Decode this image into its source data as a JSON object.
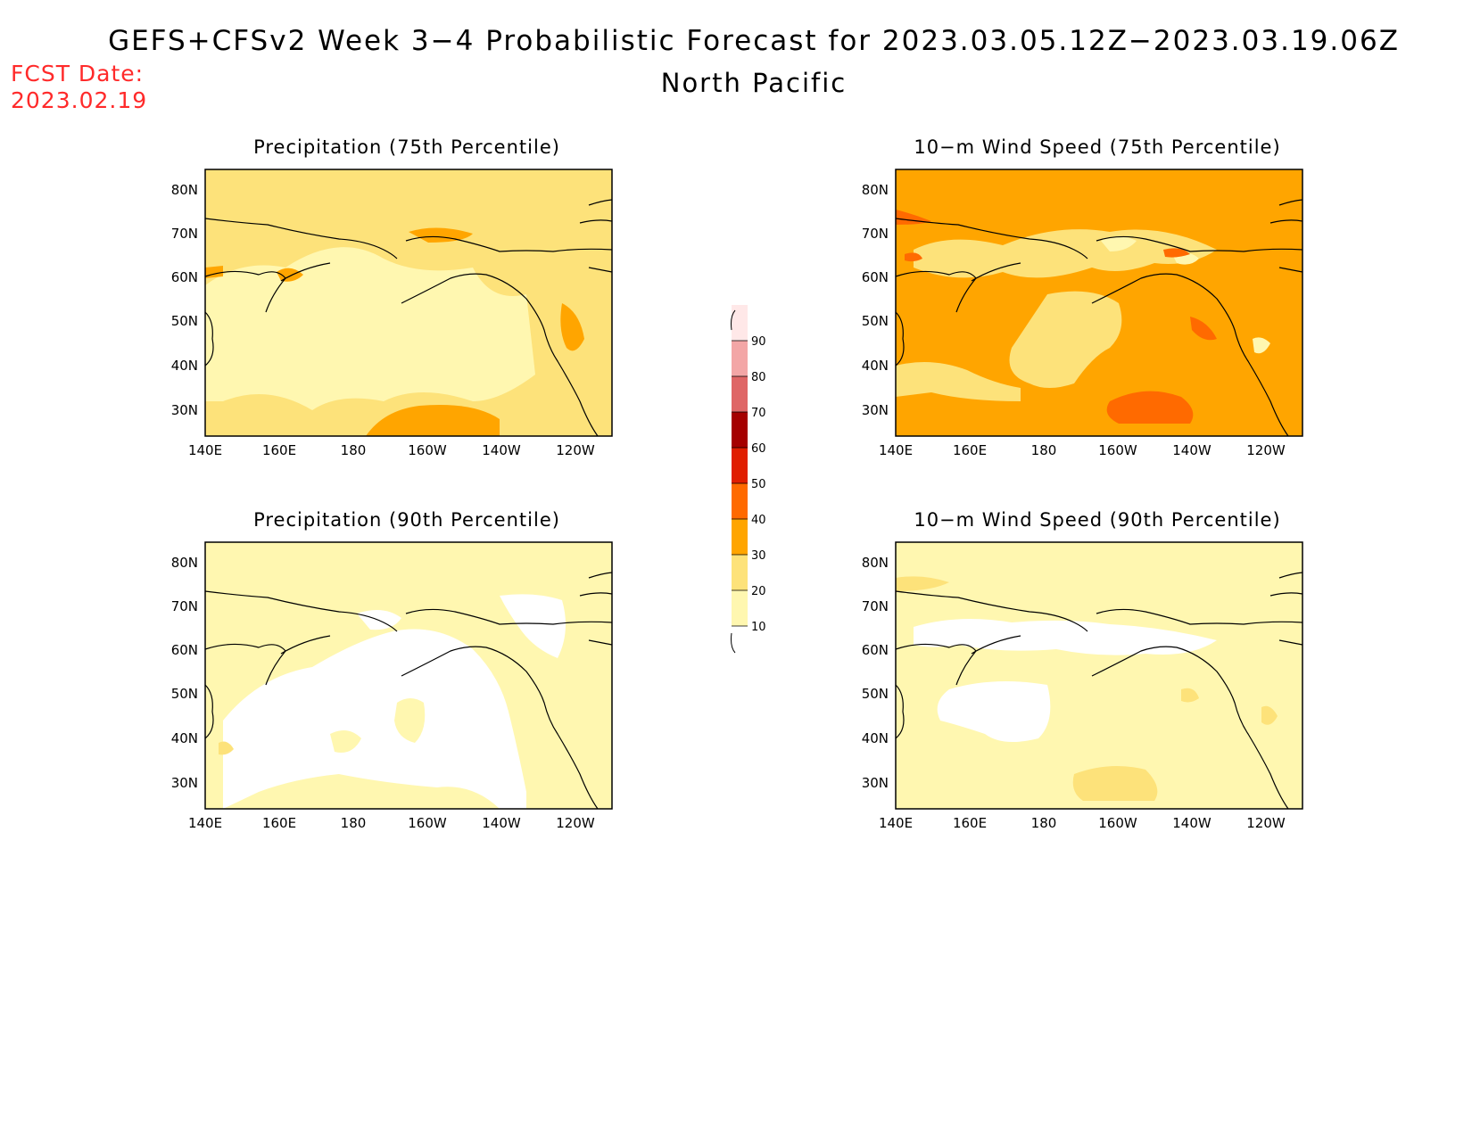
{
  "header": {
    "title": "GEFS+CFSv2 Week 3−4 Probabilistic Forecast for 2023.03.05.12Z−2023.03.19.06Z",
    "region": "North Pacific",
    "fcst_label": "FCST Date:",
    "fcst_date": "2023.02.19"
  },
  "axes": {
    "lon_labels": [
      "140E",
      "160E",
      "180",
      "160W",
      "140W",
      "120W"
    ],
    "lat_labels": [
      "30N",
      "40N",
      "50N",
      "60N",
      "70N",
      "80N"
    ]
  },
  "panels": [
    {
      "id": "precip-75",
      "title": "Precipitation (75th Percentile)"
    },
    {
      "id": "wind-75",
      "title": "10−m Wind Speed (75th Percentile)"
    },
    {
      "id": "precip-90",
      "title": "Precipitation (90th Percentile)"
    },
    {
      "id": "wind-90",
      "title": "10−m Wind Speed (90th Percentile)"
    }
  ],
  "colorbar": {
    "levels": [
      "10",
      "20",
      "30",
      "40",
      "50",
      "60",
      "70",
      "80",
      "90"
    ],
    "colors": [
      "#fff7b0",
      "#fde27a",
      "#ffa500",
      "#ff6a00",
      "#e01e00",
      "#a50000",
      "#df6666",
      "#f3a6a6",
      "#ffe8e8"
    ]
  },
  "colors": {
    "white": "#ffffff",
    "c10": "#fff7b0",
    "c20": "#fde27a",
    "c30": "#ffa500",
    "c40": "#ff6a00",
    "fcst_red": "#ff2a2a"
  }
}
